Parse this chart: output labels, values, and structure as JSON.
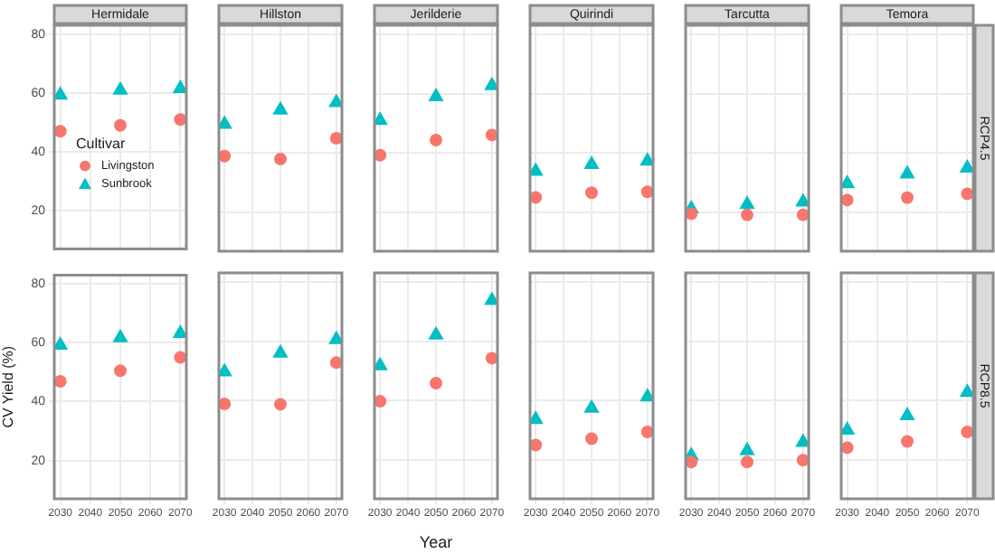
{
  "chart_data": [
    {
      "type": "scatter",
      "title": "Hermidale",
      "x": [
        2030,
        2050,
        2070
      ],
      "xlim": [
        2028,
        2072
      ],
      "xticks": [
        2030,
        2040,
        2050,
        2060,
        2070
      ],
      "ylim": [
        7,
        83
      ],
      "yticks": [
        20,
        40,
        60,
        80
      ],
      "grid": true,
      "tick_labels": "y",
      "legend": "bottom left",
      "legend_title": "Cultivar",
      "series": [
        {
          "name": "Livingston",
          "color": "#f8766d",
          "marker": "circle",
          "values": [
            47,
            49,
            51
          ]
        },
        {
          "name": "Sunbrook",
          "color": "#00bfc4",
          "marker": "triangle",
          "values": [
            59.3,
            61,
            61.5
          ]
        }
      ]
    },
    {
      "type": "scatter",
      "title": "Hillston",
      "x": [
        2030,
        2050,
        2070
      ],
      "xlim": [
        2028,
        2072
      ],
      "xticks": [
        2030,
        2040,
        2050,
        2060,
        2070
      ],
      "ylim": [
        7,
        83
      ],
      "yticks": [
        20,
        40,
        60,
        80
      ],
      "grid": true,
      "tick_labels": false,
      "series": [
        {
          "color": "#f8766d",
          "marker": "circle",
          "values": [
            39,
            38,
            45
          ]
        },
        {
          "color": "#00bfc4",
          "marker": "triangle",
          "values": [
            49.7,
            54.5,
            57
          ]
        }
      ]
    },
    {
      "type": "scatter",
      "title": "Jerilderie",
      "x": [
        2030,
        2050,
        2070
      ],
      "xlim": [
        2028,
        2072
      ],
      "xticks": [
        2030,
        2040,
        2050,
        2060,
        2070
      ],
      "ylim": [
        7,
        83
      ],
      "yticks": [
        20,
        40,
        60,
        80
      ],
      "grid": true,
      "tick_labels": false,
      "series": [
        {
          "color": "#f8766d",
          "marker": "circle",
          "values": [
            39.3,
            44.4,
            46.1
          ]
        },
        {
          "color": "#00bfc4",
          "marker": "triangle",
          "values": [
            51,
            59,
            62.7
          ]
        }
      ]
    },
    {
      "type": "scatter",
      "title": "Quirindi",
      "x": [
        2030,
        2050,
        2070
      ],
      "xlim": [
        2028,
        2072
      ],
      "xticks": [
        2030,
        2040,
        2050,
        2060,
        2070
      ],
      "ylim": [
        7,
        83
      ],
      "yticks": [
        20,
        40,
        60,
        80
      ],
      "grid": true,
      "tick_labels": false,
      "series": [
        {
          "color": "#f8766d",
          "marker": "circle",
          "values": [
            25.1,
            26.7,
            27
          ]
        },
        {
          "color": "#00bfc4",
          "marker": "triangle",
          "values": [
            33.9,
            36.2,
            37.3
          ]
        }
      ]
    },
    {
      "type": "scatter",
      "title": "Tarcutta",
      "x": [
        2030,
        2050,
        2070
      ],
      "xlim": [
        2028,
        2072
      ],
      "xticks": [
        2030,
        2040,
        2050,
        2060,
        2070
      ],
      "ylim": [
        7,
        83
      ],
      "yticks": [
        20,
        40,
        60,
        80
      ],
      "grid": true,
      "tick_labels": false,
      "series": [
        {
          "color": "#f8766d",
          "marker": "circle",
          "values": [
            19.6,
            19.2,
            19.2
          ]
        },
        {
          "color": "#00bfc4",
          "marker": "triangle",
          "values": [
            21.3,
            22.7,
            23.6
          ]
        }
      ]
    },
    {
      "type": "scatter",
      "title": "Temora",
      "annotations": [
        "RCP4.5"
      ],
      "x": [
        2030,
        2050,
        2070
      ],
      "xlim": [
        2028,
        2072
      ],
      "xticks": [
        2030,
        2040,
        2050,
        2060,
        2070
      ],
      "ylim": [
        7,
        83
      ],
      "yticks": [
        20,
        40,
        60,
        80
      ],
      "grid": true,
      "tick_labels": false,
      "series": [
        {
          "color": "#f8766d",
          "marker": "circle",
          "values": [
            24.2,
            25,
            26.3
          ]
        },
        {
          "color": "#00bfc4",
          "marker": "triangle",
          "values": [
            29.7,
            33,
            35
          ]
        }
      ]
    },
    {
      "type": "scatter",
      "ylabel": "CV Yield (%)",
      "x": [
        2030,
        2050,
        2070
      ],
      "xlim": [
        2028,
        2072
      ],
      "xticks": [
        2030,
        2040,
        2050,
        2060,
        2070
      ],
      "ylim": [
        7,
        83
      ],
      "yticks": [
        20,
        40,
        60,
        80
      ],
      "grid": true,
      "series": [
        {
          "color": "#f8766d",
          "marker": "circle",
          "values": [
            46.9,
            50.5,
            55
          ]
        },
        {
          "color": "#00bfc4",
          "marker": "triangle",
          "values": [
            59.2,
            61.7,
            63.2
          ]
        }
      ]
    },
    {
      "type": "scatter",
      "x": [
        2030,
        2050,
        2070
      ],
      "xlim": [
        2028,
        2072
      ],
      "xticks": [
        2030,
        2040,
        2050,
        2060,
        2070
      ],
      "ylim": [
        7,
        83
      ],
      "yticks": [
        20,
        40,
        60,
        80
      ],
      "grid": true,
      "tick_labels": "x",
      "series": [
        {
          "color": "#f8766d",
          "marker": "circle",
          "values": [
            38.9,
            38.8,
            52.8
          ]
        },
        {
          "color": "#00bfc4",
          "marker": "triangle",
          "values": [
            49.7,
            56,
            60.6
          ]
        }
      ]
    },
    {
      "type": "scatter",
      "xlabel": "Year",
      "x": [
        2030,
        2050,
        2070
      ],
      "xlim": [
        2028,
        2072
      ],
      "xticks": [
        2030,
        2040,
        2050,
        2060,
        2070
      ],
      "ylim": [
        7,
        83
      ],
      "yticks": [
        20,
        40,
        60,
        80
      ],
      "grid": true,
      "tick_labels": "x",
      "series": [
        {
          "color": "#f8766d",
          "marker": "circle",
          "values": [
            39.8,
            45.9,
            54.3
          ]
        },
        {
          "color": "#00bfc4",
          "marker": "triangle",
          "values": [
            51.8,
            62.1,
            73.7
          ]
        }
      ]
    },
    {
      "type": "scatter",
      "x": [
        2030,
        2050,
        2070
      ],
      "xlim": [
        2028,
        2072
      ],
      "xticks": [
        2030,
        2040,
        2050,
        2060,
        2070
      ],
      "ylim": [
        7,
        83
      ],
      "yticks": [
        20,
        40,
        60,
        80
      ],
      "grid": true,
      "tick_labels": "x",
      "series": [
        {
          "color": "#f8766d",
          "marker": "circle",
          "values": [
            25.1,
            27.2,
            29.5
          ]
        },
        {
          "color": "#00bfc4",
          "marker": "triangle",
          "values": [
            33.7,
            37.5,
            41.3
          ]
        }
      ]
    },
    {
      "type": "scatter",
      "x": [
        2030,
        2050,
        2070
      ],
      "xlim": [
        2028,
        2072
      ],
      "xticks": [
        2030,
        2040,
        2050,
        2060,
        2070
      ],
      "ylim": [
        7,
        83
      ],
      "yticks": [
        20,
        40,
        60,
        80
      ],
      "grid": true,
      "tick_labels": "x",
      "series": [
        {
          "color": "#f8766d",
          "marker": "circle",
          "values": [
            19.4,
            19.4,
            20
          ]
        },
        {
          "color": "#00bfc4",
          "marker": "triangle",
          "values": [
            21.5,
            23.2,
            26
          ]
        }
      ]
    },
    {
      "type": "scatter",
      "annotations": [
        "RCP8.5"
      ],
      "x": [
        2030,
        2050,
        2070
      ],
      "xlim": [
        2028,
        2072
      ],
      "xticks": [
        2030,
        2040,
        2050,
        2060,
        2070
      ],
      "ylim": [
        7,
        83
      ],
      "yticks": [
        20,
        40,
        60,
        80
      ],
      "grid": true,
      "tick_labels": "x",
      "series": [
        {
          "color": "#f8766d",
          "marker": "circle",
          "values": [
            24.2,
            26.3,
            29.5
          ]
        },
        {
          "color": "#00bfc4",
          "marker": "triangle",
          "values": [
            30.1,
            35,
            42.8
          ]
        }
      ]
    }
  ]
}
